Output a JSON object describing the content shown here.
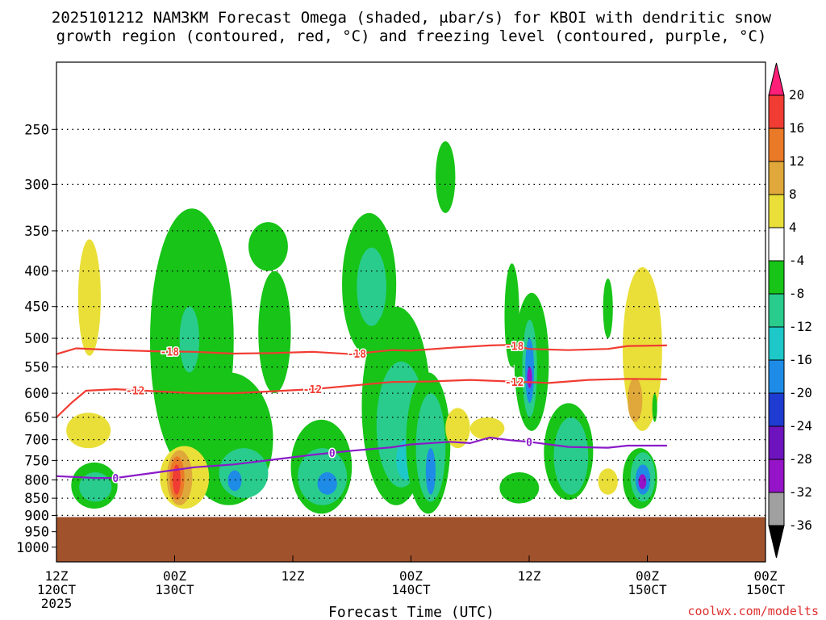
{
  "chart_data": {
    "type": "heatmap",
    "title": "2025101212 NAM3KM Forecast Omega (shaded, μbar/s) for KBOI with dendritic snow growth region (contoured, red, °C) and freezing level (contoured, purple, °C)",
    "title_line1": "2025101212 NAM3KM Forecast Omega (shaded, μbar/s) for KBOI with dendritic snow",
    "title_line2": "growth region (contoured, red, °C) and freezing level (contoured, purple, °C)",
    "xlabel": "Forecast Time (UTC)",
    "ylabel": "",
    "credit": "coolwx.com/modelts",
    "y_axis": {
      "scale": "log",
      "range": [
        1050,
        200
      ],
      "ticks": [
        250,
        300,
        350,
        400,
        450,
        500,
        550,
        600,
        650,
        700,
        750,
        800,
        850,
        900,
        950,
        1000
      ]
    },
    "x_axis": {
      "range_hours": [
        0,
        72
      ],
      "ticks": [
        {
          "h": 0,
          "line1": "12Z",
          "line2": "120CT",
          "line3": "2025"
        },
        {
          "h": 12,
          "line1": "00Z",
          "line2": "130CT",
          "line3": ""
        },
        {
          "h": 24,
          "line1": "12Z",
          "line2": "",
          "line3": ""
        },
        {
          "h": 36,
          "line1": "00Z",
          "line2": "140CT",
          "line3": ""
        },
        {
          "h": 48,
          "line1": "12Z",
          "line2": "",
          "line3": ""
        },
        {
          "h": 60,
          "line1": "00Z",
          "line2": "150CT",
          "line3": ""
        }
      ]
    },
    "colorbar": {
      "labels": [
        "20",
        "16",
        "12",
        "8",
        "4",
        "-4",
        "-8",
        "-12",
        "-16",
        "-20",
        "-24",
        "-28",
        "-32",
        "-36"
      ],
      "colors": [
        "#ff1e78",
        "#f03c32",
        "#eb7a28",
        "#e0a83a",
        "#eadf38",
        "#ffffff",
        "#17c417",
        "#29cc8c",
        "#1ec8c8",
        "#1e8ce6",
        "#1e3cd2",
        "#6e14be",
        "#9614c8",
        "#a0a0a0",
        "#000000"
      ]
    },
    "terrain": {
      "color": "#a0522d",
      "surface_pressure_hpa": 905
    },
    "omega_blobs": [
      {
        "c": "#eadf38",
        "h0": 2.2,
        "h1": 4.5,
        "p0": 360,
        "p1": 530
      },
      {
        "c": "#eadf38",
        "h0": 1.0,
        "h1": 5.5,
        "p0": 640,
        "p1": 720
      },
      {
        "c": "#17c417",
        "h0": 1.5,
        "h1": 6.2,
        "p0": 755,
        "p1": 880
      },
      {
        "c": "#29cc8c",
        "h0": 2.3,
        "h1": 5.6,
        "p0": 780,
        "p1": 860
      },
      {
        "c": "#17c417",
        "h0": 9.5,
        "h1": 18.0,
        "p0": 325,
        "p1": 780
      },
      {
        "c": "#29cc8c",
        "h0": 12.5,
        "h1": 14.5,
        "p0": 450,
        "p1": 560
      },
      {
        "c": "#17c417",
        "h0": 13.0,
        "h1": 22.0,
        "p0": 560,
        "p1": 870
      },
      {
        "c": "#29cc8c",
        "h0": 16.5,
        "h1": 21.5,
        "p0": 720,
        "p1": 850
      },
      {
        "c": "#1e8ce6",
        "h0": 17.4,
        "h1": 18.8,
        "p0": 775,
        "p1": 830
      },
      {
        "c": "#17c417",
        "h0": 19.5,
        "h1": 23.5,
        "p0": 340,
        "p1": 400
      },
      {
        "c": "#17c417",
        "h0": 20.5,
        "h1": 23.8,
        "p0": 400,
        "p1": 600
      },
      {
        "c": "#17c417",
        "h0": 23.8,
        "h1": 30.0,
        "p0": 655,
        "p1": 895
      },
      {
        "c": "#29cc8c",
        "h0": 24.5,
        "h1": 29.5,
        "p0": 720,
        "p1": 870
      },
      {
        "c": "#1e8ce6",
        "h0": 26.5,
        "h1": 28.5,
        "p0": 780,
        "p1": 840
      },
      {
        "c": "#17c417",
        "h0": 29.0,
        "h1": 34.5,
        "p0": 330,
        "p1": 530
      },
      {
        "c": "#29cc8c",
        "h0": 30.5,
        "h1": 33.5,
        "p0": 370,
        "p1": 480
      },
      {
        "c": "#17c417",
        "h0": 31.0,
        "h1": 38.0,
        "p0": 450,
        "p1": 870
      },
      {
        "c": "#29cc8c",
        "h0": 32.5,
        "h1": 37.5,
        "p0": 540,
        "p1": 820
      },
      {
        "c": "#1ec8c8",
        "h0": 34.5,
        "h1": 36.5,
        "p0": 700,
        "p1": 800
      },
      {
        "c": "#17c417",
        "h0": 35.5,
        "h1": 40.0,
        "p0": 560,
        "p1": 895
      },
      {
        "c": "#29cc8c",
        "h0": 36.5,
        "h1": 39.5,
        "p0": 600,
        "p1": 860
      },
      {
        "c": "#1e8ce6",
        "h0": 37.5,
        "h1": 38.5,
        "p0": 720,
        "p1": 840
      },
      {
        "c": "#17c417",
        "h0": 38.5,
        "h1": 40.5,
        "p0": 260,
        "p1": 330
      },
      {
        "c": "#eadf38",
        "h0": 39.5,
        "h1": 42.0,
        "p0": 630,
        "p1": 720
      },
      {
        "c": "#eadf38",
        "h0": 42.0,
        "h1": 45.5,
        "p0": 650,
        "p1": 700
      },
      {
        "c": "#17c417",
        "h0": 45.5,
        "h1": 47.0,
        "p0": 390,
        "p1": 550
      },
      {
        "c": "#17c417",
        "h0": 46.5,
        "h1": 50.0,
        "p0": 430,
        "p1": 680
      },
      {
        "c": "#29cc8c",
        "h0": 47.3,
        "h1": 48.8,
        "p0": 470,
        "p1": 650
      },
      {
        "c": "#1e8ce6",
        "h0": 47.6,
        "h1": 48.5,
        "p0": 500,
        "p1": 620
      },
      {
        "c": "#9614c8",
        "h0": 47.8,
        "h1": 48.3,
        "p0": 550,
        "p1": 590
      },
      {
        "c": "#17c417",
        "h0": 49.5,
        "h1": 54.5,
        "p0": 620,
        "p1": 855
      },
      {
        "c": "#29cc8c",
        "h0": 50.5,
        "h1": 54.0,
        "p0": 650,
        "p1": 840
      },
      {
        "c": "#17c417",
        "h0": 45.0,
        "h1": 49.0,
        "p0": 780,
        "p1": 865
      },
      {
        "c": "#17c417",
        "h0": 55.5,
        "h1": 56.5,
        "p0": 410,
        "p1": 500
      },
      {
        "c": "#eadf38",
        "h0": 55.0,
        "h1": 57.0,
        "p0": 770,
        "p1": 840
      },
      {
        "c": "#eadf38",
        "h0": 57.5,
        "h1": 61.5,
        "p0": 395,
        "p1": 680
      },
      {
        "c": "#e0a83a",
        "h0": 58.0,
        "h1": 59.5,
        "p0": 570,
        "p1": 660
      },
      {
        "c": "#17c417",
        "h0": 57.5,
        "h1": 61.0,
        "p0": 720,
        "p1": 880
      },
      {
        "c": "#29cc8c",
        "h0": 58.3,
        "h1": 60.8,
        "p0": 730,
        "p1": 860
      },
      {
        "c": "#1e8ce6",
        "h0": 58.8,
        "h1": 60.3,
        "p0": 760,
        "p1": 840
      },
      {
        "c": "#9614c8",
        "h0": 59.1,
        "h1": 59.9,
        "p0": 785,
        "p1": 825
      },
      {
        "c": "#17c417",
        "h0": 60.5,
        "h1": 61.0,
        "p0": 600,
        "p1": 660
      }
    ],
    "hot_spots": [
      {
        "c": "#eadf38",
        "h0": 10.5,
        "h1": 15.5,
        "p0": 715,
        "p1": 880
      },
      {
        "c": "#e0a83a",
        "h0": 11.2,
        "h1": 13.8,
        "p0": 725,
        "p1": 870
      },
      {
        "c": "#eb7a28",
        "h0": 11.5,
        "h1": 13.0,
        "p0": 740,
        "p1": 855
      },
      {
        "c": "#f03c32",
        "h0": 11.8,
        "h1": 12.6,
        "p0": 760,
        "p1": 840
      }
    ],
    "contours": [
      {
        "label": "-18",
        "color": "#f03c32",
        "label_at_h": [
          11.5,
          30.5,
          46.5
        ],
        "points": [
          [
            0,
            527
          ],
          [
            2,
            517
          ],
          [
            6,
            520
          ],
          [
            10,
            522
          ],
          [
            14,
            523
          ],
          [
            18,
            526
          ],
          [
            22,
            525
          ],
          [
            26,
            523
          ],
          [
            30,
            527
          ],
          [
            34,
            520
          ],
          [
            36,
            521
          ],
          [
            40,
            516
          ],
          [
            44,
            512
          ],
          [
            46,
            511
          ],
          [
            48,
            518
          ],
          [
            52,
            520
          ],
          [
            56,
            518
          ],
          [
            58,
            513
          ],
          [
            62,
            512
          ]
        ]
      },
      {
        "label": "-12",
        "color": "#f03c32",
        "label_at_h": [
          8.0,
          26.0,
          46.5
        ],
        "points": [
          [
            0,
            650
          ],
          [
            1.5,
            620
          ],
          [
            3,
            595
          ],
          [
            6,
            592
          ],
          [
            10,
            596
          ],
          [
            14,
            600
          ],
          [
            18,
            600
          ],
          [
            22,
            596
          ],
          [
            26,
            592
          ],
          [
            30,
            585
          ],
          [
            34,
            578
          ],
          [
            38,
            577
          ],
          [
            42,
            574
          ],
          [
            46,
            577
          ],
          [
            50,
            580
          ],
          [
            54,
            574
          ],
          [
            58,
            572
          ],
          [
            62,
            573
          ]
        ]
      },
      {
        "label": "0",
        "color": "#8a1ac8",
        "label_at_h": [
          6.0,
          28.0,
          48.0
        ],
        "points": [
          [
            0,
            790
          ],
          [
            4,
            795
          ],
          [
            6,
            795
          ],
          [
            10,
            781
          ],
          [
            14,
            767
          ],
          [
            18,
            760
          ],
          [
            22,
            748
          ],
          [
            26,
            736
          ],
          [
            30,
            726
          ],
          [
            34,
            718
          ],
          [
            36,
            711
          ],
          [
            40,
            705
          ],
          [
            42,
            708
          ],
          [
            44,
            695
          ],
          [
            46,
            701
          ],
          [
            48,
            705
          ],
          [
            52,
            717
          ],
          [
            56,
            719
          ],
          [
            58,
            714
          ],
          [
            62,
            714
          ]
        ]
      }
    ]
  }
}
